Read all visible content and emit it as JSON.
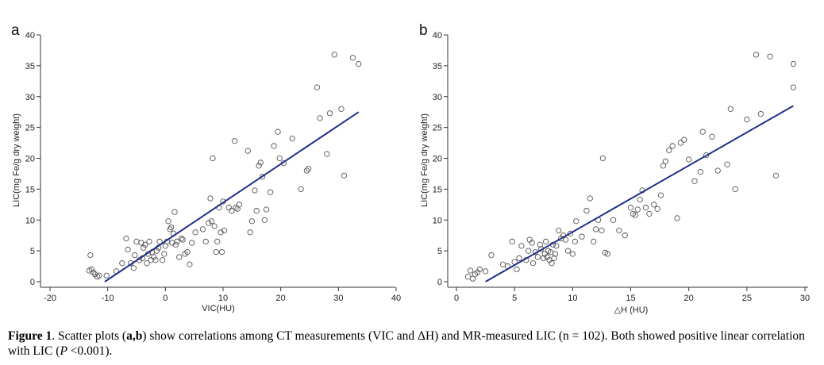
{
  "chart_data": [
    {
      "type": "scatter",
      "panel_label": "a",
      "xlabel": "VIC(HU)",
      "ylabel": "LIC(mg Fe/g dry weight)",
      "xlim": [
        -20,
        40
      ],
      "ylim": [
        0,
        40
      ],
      "x_ticks": [
        "-20",
        "-10",
        "0",
        "10",
        "20",
        "30",
        "40"
      ],
      "y_ticks": [
        "0",
        "5",
        "10",
        "15",
        "20",
        "25",
        "30",
        "35",
        "40"
      ],
      "grid": false,
      "marker": "open-circle",
      "fit_line": {
        "x": [
          -10.5,
          33.5
        ],
        "y": [
          0,
          27.5
        ],
        "color": "#1f2f8a"
      },
      "points": [
        [
          -13.2,
          1.8
        ],
        [
          -13,
          4.3
        ],
        [
          -12.8,
          2
        ],
        [
          -12.5,
          1.5
        ],
        [
          -12.2,
          1.2
        ],
        [
          -11.8,
          0.8
        ],
        [
          -11.5,
          1
        ],
        [
          -10.2,
          1
        ],
        [
          -8.5,
          1.7
        ],
        [
          -7.5,
          3
        ],
        [
          -6.8,
          7
        ],
        [
          -6.5,
          5.2
        ],
        [
          -6,
          3
        ],
        [
          -5.5,
          2.2
        ],
        [
          -5.3,
          4.3
        ],
        [
          -5,
          6.5
        ],
        [
          -4.5,
          3.5
        ],
        [
          -4.2,
          6.3
        ],
        [
          -4,
          3.8
        ],
        [
          -3.8,
          5.5
        ],
        [
          -3.5,
          6
        ],
        [
          -3.2,
          3
        ],
        [
          -3,
          4.5
        ],
        [
          -2.8,
          6.5
        ],
        [
          -2.5,
          3.5
        ],
        [
          -2.3,
          4.8
        ],
        [
          -2,
          4
        ],
        [
          -1.7,
          3.5
        ],
        [
          -1.5,
          5
        ],
        [
          -1.2,
          5.5
        ],
        [
          -1,
          6.5
        ],
        [
          -0.5,
          3.5
        ],
        [
          -0.2,
          4.5
        ],
        [
          0,
          5.8
        ],
        [
          0.3,
          6.5
        ],
        [
          0.5,
          9.8
        ],
        [
          0.8,
          8.5
        ],
        [
          1,
          8.8
        ],
        [
          1.2,
          6.3
        ],
        [
          1.4,
          7.8
        ],
        [
          1.6,
          11.3
        ],
        [
          1.8,
          6
        ],
        [
          2,
          6.5
        ],
        [
          2.4,
          4
        ],
        [
          2.8,
          7
        ],
        [
          3,
          6.8
        ],
        [
          3.4,
          4.5
        ],
        [
          3.8,
          4.8
        ],
        [
          4.2,
          2.8
        ],
        [
          4.6,
          6.3
        ],
        [
          5.2,
          8
        ],
        [
          6.5,
          8.5
        ],
        [
          7,
          6.5
        ],
        [
          7.5,
          9.5
        ],
        [
          7.8,
          13.5
        ],
        [
          8,
          9.8
        ],
        [
          8.2,
          20
        ],
        [
          8.5,
          9
        ],
        [
          8.8,
          4.8
        ],
        [
          9,
          6.5
        ],
        [
          9.3,
          12
        ],
        [
          9.6,
          8
        ],
        [
          9.8,
          4.8
        ],
        [
          10,
          13
        ],
        [
          10.2,
          8.3
        ],
        [
          11,
          12
        ],
        [
          11.5,
          11.5
        ],
        [
          12,
          22.8
        ],
        [
          12.2,
          12
        ],
        [
          12.5,
          11.8
        ],
        [
          12.8,
          12.5
        ],
        [
          14.3,
          21.2
        ],
        [
          14.7,
          8
        ],
        [
          15,
          9.8
        ],
        [
          15.5,
          14.8
        ],
        [
          15.8,
          11.5
        ],
        [
          16.2,
          18.8
        ],
        [
          16.5,
          19.3
        ],
        [
          16.8,
          17
        ],
        [
          17.2,
          10
        ],
        [
          17.5,
          11.7
        ],
        [
          18.2,
          14.5
        ],
        [
          18.8,
          22
        ],
        [
          19.5,
          24.3
        ],
        [
          19.8,
          20
        ],
        [
          20.5,
          19.2
        ],
        [
          22,
          23.2
        ],
        [
          23.5,
          15
        ],
        [
          24.5,
          18
        ],
        [
          24.8,
          18.3
        ],
        [
          26.3,
          31.5
        ],
        [
          26.8,
          26.5
        ],
        [
          28,
          20.7
        ],
        [
          28.5,
          27.3
        ],
        [
          29.3,
          36.8
        ],
        [
          30.5,
          28
        ],
        [
          31,
          17.2
        ],
        [
          32.5,
          36.3
        ],
        [
          33.5,
          35.3
        ]
      ]
    },
    {
      "type": "scatter",
      "panel_label": "b",
      "xlabel": "△H (HU)",
      "ylabel": "LIC(mg Fe/g dry weight)",
      "xlim": [
        0,
        30
      ],
      "ylim": [
        0,
        40
      ],
      "x_ticks": [
        "0",
        "5",
        "10",
        "15",
        "20",
        "25",
        "30"
      ],
      "y_ticks": [
        "0",
        "5",
        "10",
        "15",
        "20",
        "25",
        "30",
        "35",
        "40"
      ],
      "grid": false,
      "marker": "open-circle",
      "fit_line": {
        "x": [
          2.5,
          29
        ],
        "y": [
          0,
          28.5
        ],
        "color": "#1f2f8a"
      },
      "points": [
        [
          1,
          0.8
        ],
        [
          1.2,
          1.8
        ],
        [
          1.4,
          0.5
        ],
        [
          1.6,
          1.2
        ],
        [
          1.8,
          1.5
        ],
        [
          2,
          2
        ],
        [
          2.5,
          1.7
        ],
        [
          3,
          4.3
        ],
        [
          4,
          2.8
        ],
        [
          4.4,
          2.5
        ],
        [
          4.8,
          6.5
        ],
        [
          5,
          3.2
        ],
        [
          5.2,
          2
        ],
        [
          5.4,
          3.8
        ],
        [
          5.6,
          5.8
        ],
        [
          6,
          3.5
        ],
        [
          6.2,
          5
        ],
        [
          6.3,
          6.8
        ],
        [
          6.5,
          6.3
        ],
        [
          6.6,
          3
        ],
        [
          6.8,
          4.8
        ],
        [
          7,
          4
        ],
        [
          7.2,
          6
        ],
        [
          7.3,
          5.3
        ],
        [
          7.5,
          3.8
        ],
        [
          7.6,
          4.5
        ],
        [
          7.7,
          6.5
        ],
        [
          7.8,
          4
        ],
        [
          7.9,
          5
        ],
        [
          8,
          3.5
        ],
        [
          8.1,
          4.8
        ],
        [
          8.2,
          3
        ],
        [
          8.3,
          6
        ],
        [
          8.4,
          3.8
        ],
        [
          8.5,
          4.5
        ],
        [
          8.6,
          5.8
        ],
        [
          8.8,
          8.3
        ],
        [
          9,
          7
        ],
        [
          9.2,
          7.5
        ],
        [
          9.4,
          6.8
        ],
        [
          9.6,
          5
        ],
        [
          9.8,
          7.8
        ],
        [
          10,
          4.5
        ],
        [
          10.2,
          6.5
        ],
        [
          10.3,
          9.8
        ],
        [
          10.8,
          7.3
        ],
        [
          11.2,
          11.5
        ],
        [
          11.5,
          13.5
        ],
        [
          11.8,
          6.5
        ],
        [
          12,
          8.5
        ],
        [
          12.2,
          10
        ],
        [
          12.5,
          8.3
        ],
        [
          12.6,
          20
        ],
        [
          12.8,
          4.7
        ],
        [
          13,
          4.5
        ],
        [
          13.5,
          10
        ],
        [
          14,
          8.3
        ],
        [
          14.5,
          7.5
        ],
        [
          15,
          12
        ],
        [
          15.2,
          11
        ],
        [
          15.4,
          10.8
        ],
        [
          15.6,
          11.7
        ],
        [
          15.8,
          13.3
        ],
        [
          16,
          14.8
        ],
        [
          16.3,
          12
        ],
        [
          16.6,
          11
        ],
        [
          17,
          12.5
        ],
        [
          17.3,
          11.8
        ],
        [
          17.6,
          14
        ],
        [
          17.8,
          18.8
        ],
        [
          18,
          19.5
        ],
        [
          18.3,
          21.3
        ],
        [
          18.6,
          22
        ],
        [
          19,
          10.3
        ],
        [
          19.3,
          22.5
        ],
        [
          19.6,
          23
        ],
        [
          20,
          19.8
        ],
        [
          20.5,
          16.3
        ],
        [
          21,
          17.8
        ],
        [
          21.2,
          24.3
        ],
        [
          21.5,
          20.5
        ],
        [
          22,
          23.5
        ],
        [
          22.5,
          18
        ],
        [
          23.3,
          19
        ],
        [
          23.6,
          28
        ],
        [
          24,
          15
        ],
        [
          25,
          26.3
        ],
        [
          25.8,
          36.8
        ],
        [
          26.2,
          27.2
        ],
        [
          27,
          36.5
        ],
        [
          27.5,
          17.2
        ],
        [
          29,
          35.3
        ],
        [
          29,
          31.5
        ]
      ]
    }
  ],
  "caption": {
    "figure_label": "Figure 1",
    "part1": ". Scatter plots (",
    "panels": "a,b",
    "part2": ") show correlations among CT measurements (VIC and ΔH) and MR-measured LIC (n = 102). Both showed positive linear correlation with LIC (",
    "p_symbol": "P",
    "part3": " <0.001)."
  }
}
